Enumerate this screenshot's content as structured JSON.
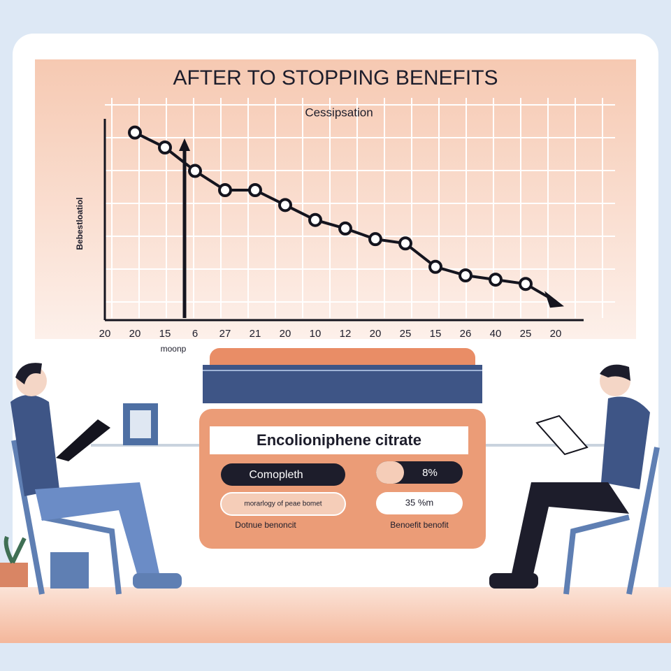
{
  "chart_data": {
    "type": "line",
    "title": "AFTER TO STOPPING BENEFITS",
    "annotation": "Cessipsation",
    "y_label": "Bebestloatiol",
    "x_label": "moonp",
    "categories": [
      "20",
      "20",
      "15",
      "6",
      "27",
      "21",
      "20",
      "10",
      "12",
      "20",
      "25",
      "15",
      "26",
      "40",
      "25",
      "20"
    ],
    "values": [
      null,
      87,
      80,
      69,
      60,
      60,
      53,
      46,
      42,
      37,
      35,
      24,
      20,
      18,
      16,
      null
    ],
    "color": "#14141e",
    "ylim": [
      0,
      100
    ],
    "grid": true
  },
  "product": {
    "name": "Encolioniphene citrate",
    "pill_left": "Comopleth",
    "pill_right": "8%",
    "box_left": "morarlogy of peae bomet",
    "box_right": "35 %m",
    "caption_left": "Dotnue benoncit",
    "caption_right": "Benoefit benofit"
  }
}
